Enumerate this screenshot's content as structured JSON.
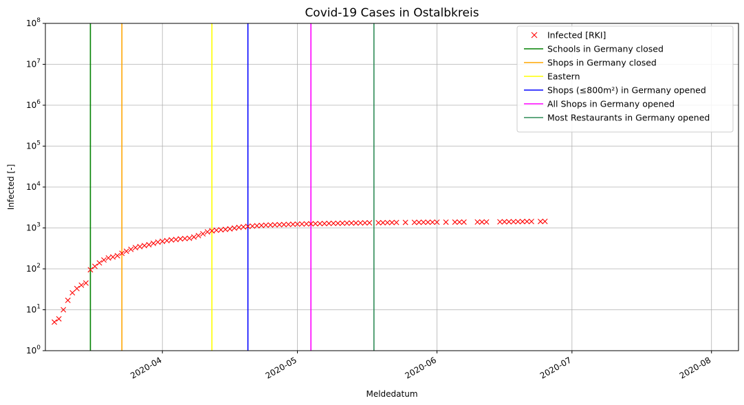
{
  "chart_data": {
    "type": "line",
    "title": "Covid-19 Cases in Ostalbkreis",
    "xlabel": "Meldedatum",
    "ylabel": "Infected [-]",
    "yscale": "log",
    "ylim": [
      1,
      100000000
    ],
    "xlim": [
      "2020-03-06",
      "2020-08-07"
    ],
    "grid": true,
    "legend_position": "top-right",
    "x_ticks": [
      "2020-04",
      "2020-05",
      "2020-06",
      "2020-07",
      "2020-08"
    ],
    "y_ticks": [
      {
        "value": 1,
        "exp": "0"
      },
      {
        "value": 10,
        "exp": "1"
      },
      {
        "value": 100,
        "exp": "2"
      },
      {
        "value": 1000,
        "exp": "3"
      },
      {
        "value": 10000,
        "exp": "4"
      },
      {
        "value": 100000,
        "exp": "5"
      },
      {
        "value": 1000000,
        "exp": "6"
      },
      {
        "value": 10000000,
        "exp": "7"
      },
      {
        "value": 100000000,
        "exp": "8"
      }
    ],
    "series": [
      {
        "name": "Infected [RKI]",
        "color": "#ff0000",
        "marker": "x",
        "points": [
          [
            "2020-03-08",
            5
          ],
          [
            "2020-03-09",
            6
          ],
          [
            "2020-03-10",
            10
          ],
          [
            "2020-03-11",
            17
          ],
          [
            "2020-03-12",
            26
          ],
          [
            "2020-03-13",
            33
          ],
          [
            "2020-03-14",
            40
          ],
          [
            "2020-03-15",
            45
          ],
          [
            "2020-03-16",
            95
          ],
          [
            "2020-03-17",
            115
          ],
          [
            "2020-03-18",
            140
          ],
          [
            "2020-03-19",
            165
          ],
          [
            "2020-03-20",
            185
          ],
          [
            "2020-03-21",
            195
          ],
          [
            "2020-03-22",
            210
          ],
          [
            "2020-03-23",
            240
          ],
          [
            "2020-03-24",
            270
          ],
          [
            "2020-03-25",
            300
          ],
          [
            "2020-03-26",
            330
          ],
          [
            "2020-03-27",
            350
          ],
          [
            "2020-03-28",
            370
          ],
          [
            "2020-03-29",
            390
          ],
          [
            "2020-03-30",
            420
          ],
          [
            "2020-03-31",
            450
          ],
          [
            "2020-04-01",
            470
          ],
          [
            "2020-04-02",
            490
          ],
          [
            "2020-04-03",
            510
          ],
          [
            "2020-04-04",
            520
          ],
          [
            "2020-04-05",
            540
          ],
          [
            "2020-04-06",
            550
          ],
          [
            "2020-04-07",
            560
          ],
          [
            "2020-04-08",
            600
          ],
          [
            "2020-04-09",
            650
          ],
          [
            "2020-04-10",
            720
          ],
          [
            "2020-04-11",
            800
          ],
          [
            "2020-04-12",
            850
          ],
          [
            "2020-04-13",
            880
          ],
          [
            "2020-04-14",
            900
          ],
          [
            "2020-04-15",
            920
          ],
          [
            "2020-04-16",
            950
          ],
          [
            "2020-04-17",
            990
          ],
          [
            "2020-04-18",
            1030
          ],
          [
            "2020-04-19",
            1060
          ],
          [
            "2020-04-20",
            1090
          ],
          [
            "2020-04-21",
            1110
          ],
          [
            "2020-04-22",
            1130
          ],
          [
            "2020-04-23",
            1150
          ],
          [
            "2020-04-24",
            1170
          ],
          [
            "2020-04-25",
            1180
          ],
          [
            "2020-04-26",
            1190
          ],
          [
            "2020-04-27",
            1200
          ],
          [
            "2020-04-28",
            1210
          ],
          [
            "2020-04-29",
            1220
          ],
          [
            "2020-04-30",
            1230
          ],
          [
            "2020-05-01",
            1240
          ],
          [
            "2020-05-02",
            1250
          ],
          [
            "2020-05-03",
            1255
          ],
          [
            "2020-05-04",
            1260
          ],
          [
            "2020-05-05",
            1270
          ],
          [
            "2020-05-06",
            1275
          ],
          [
            "2020-05-07",
            1280
          ],
          [
            "2020-05-08",
            1290
          ],
          [
            "2020-05-09",
            1295
          ],
          [
            "2020-05-10",
            1300
          ],
          [
            "2020-05-11",
            1305
          ],
          [
            "2020-05-12",
            1310
          ],
          [
            "2020-05-13",
            1315
          ],
          [
            "2020-05-14",
            1320
          ],
          [
            "2020-05-15",
            1325
          ],
          [
            "2020-05-16",
            1330
          ],
          [
            "2020-05-17",
            1335
          ],
          [
            "2020-05-19",
            1340
          ],
          [
            "2020-05-20",
            1345
          ],
          [
            "2020-05-21",
            1350
          ],
          [
            "2020-05-22",
            1355
          ],
          [
            "2020-05-23",
            1360
          ],
          [
            "2020-05-25",
            1365
          ],
          [
            "2020-05-27",
            1370
          ],
          [
            "2020-05-28",
            1372
          ],
          [
            "2020-05-29",
            1375
          ],
          [
            "2020-05-30",
            1378
          ],
          [
            "2020-05-31",
            1380
          ],
          [
            "2020-06-01",
            1382
          ],
          [
            "2020-06-03",
            1385
          ],
          [
            "2020-06-05",
            1388
          ],
          [
            "2020-06-06",
            1390
          ],
          [
            "2020-06-07",
            1392
          ],
          [
            "2020-06-10",
            1395
          ],
          [
            "2020-06-11",
            1398
          ],
          [
            "2020-06-12",
            1400
          ],
          [
            "2020-06-15",
            1410
          ],
          [
            "2020-06-16",
            1415
          ],
          [
            "2020-06-17",
            1418
          ],
          [
            "2020-06-18",
            1420
          ],
          [
            "2020-06-19",
            1425
          ],
          [
            "2020-06-20",
            1430
          ],
          [
            "2020-06-21",
            1435
          ],
          [
            "2020-06-22",
            1438
          ],
          [
            "2020-06-24",
            1440
          ],
          [
            "2020-06-25",
            1445
          ]
        ]
      }
    ],
    "events": [
      {
        "name": "Schools in Germany closed",
        "date": "2020-03-16",
        "color": "#008000"
      },
      {
        "name": "Shops in Germany closed",
        "date": "2020-03-23",
        "color": "#ffa500"
      },
      {
        "name": "Eastern",
        "date": "2020-04-12",
        "color": "#ffff00"
      },
      {
        "name": "Shops (≤800m²) in Germany opened",
        "date": "2020-04-20",
        "color": "#0000ff"
      },
      {
        "name": "All Shops in Germany opened",
        "date": "2020-05-04",
        "color": "#ff00ff"
      },
      {
        "name": "Most Restaurants in Germany opened",
        "date": "2020-05-18",
        "color": "#2e8b57"
      }
    ]
  }
}
